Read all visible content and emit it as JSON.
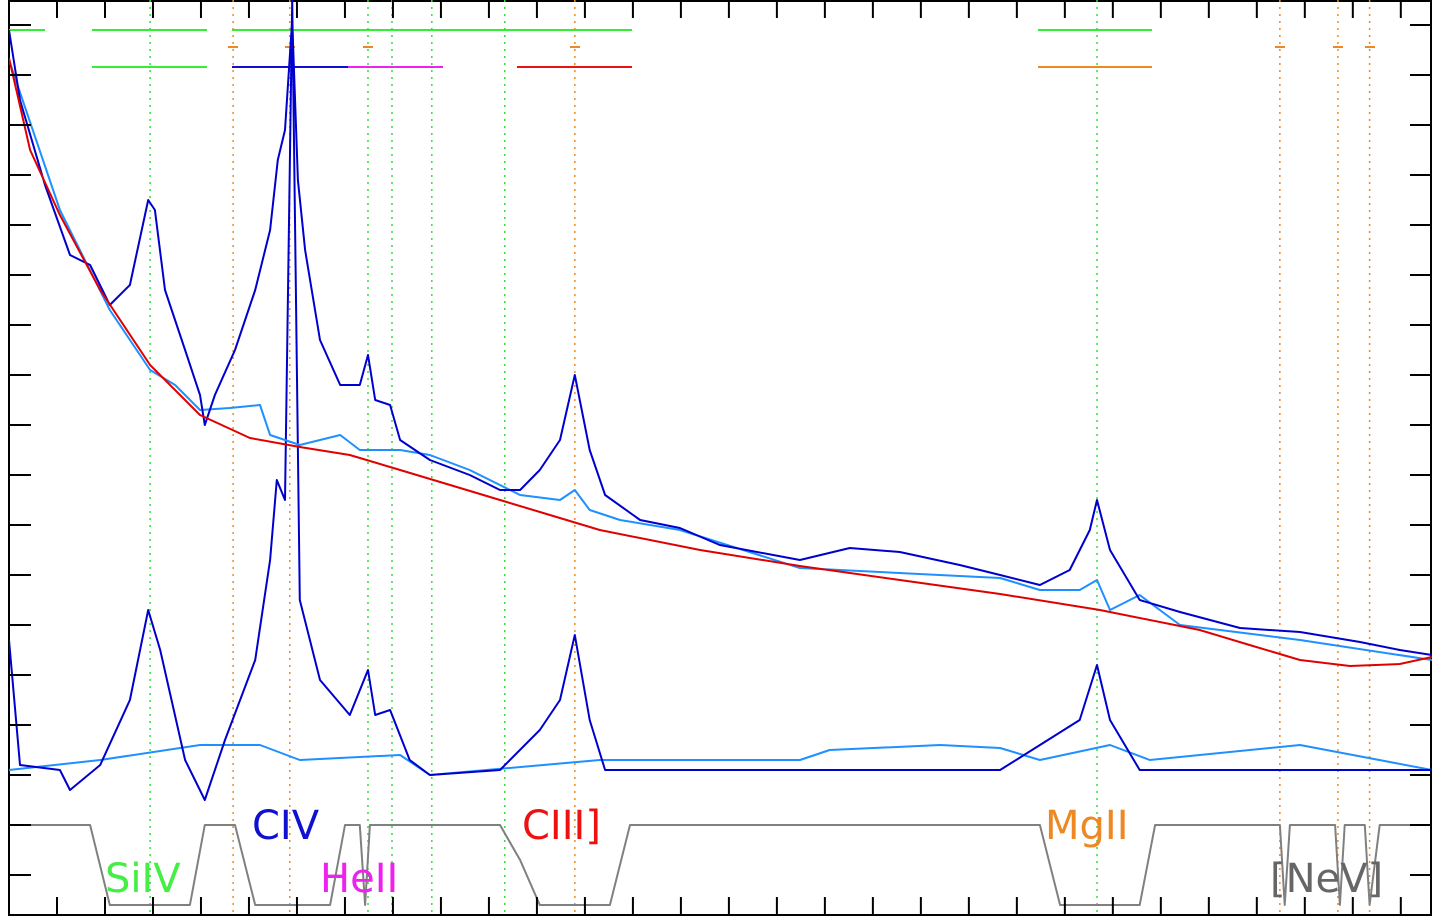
{
  "chart_data": {
    "type": "line",
    "xlim": [
      0,
      29.65
    ],
    "ylim": [
      -0.8,
      17.5
    ],
    "xticks": [
      1,
      2,
      3,
      4,
      5,
      6,
      7,
      8,
      9,
      10,
      11,
      12,
      13,
      14,
      15,
      16,
      17,
      18,
      19,
      20,
      21,
      22,
      23,
      24,
      25,
      26,
      27,
      28,
      29
    ],
    "yticks": [
      0,
      1,
      2,
      3,
      4,
      5,
      6,
      7,
      8,
      9,
      10,
      11,
      12,
      13,
      14,
      15,
      16,
      17
    ],
    "series": [
      {
        "color": "#808080",
        "x": [
          0,
          1.69,
          2.1,
          3.77,
          4.08,
          4.71,
          5.13,
          6.69,
          7.0,
          7.31,
          7.42,
          7.52,
          10.23,
          10.65,
          11.06,
          12.52,
          12.94,
          21.48,
          21.9,
          23.56,
          23.88,
          26.48,
          26.58,
          26.69,
          27.63,
          27.73,
          27.83,
          28.25,
          28.35,
          28.56,
          29.65
        ],
        "values": [
          1.0,
          1.0,
          -0.6,
          -0.6,
          1.0,
          1.0,
          -0.6,
          -0.6,
          1.0,
          1.0,
          -0.6,
          1.0,
          1.0,
          0.3,
          -0.6,
          -0.6,
          1.0,
          1.0,
          -0.6,
          -0.6,
          1.0,
          1.0,
          -0.6,
          1.0,
          1.0,
          -0.6,
          1.0,
          1.0,
          -0.6,
          1.0,
          1.0
        ]
      },
      {
        "color": "#1e90ff",
        "x": [
          0,
          1.9,
          3.98,
          5.23,
          6.06,
          8.15,
          8.77,
          12.31,
          16.48,
          17.1,
          19.4,
          20.65,
          21.48,
          22.94,
          23.77,
          26.9,
          29.65
        ],
        "values": [
          2.1,
          2.3,
          2.6,
          2.6,
          2.3,
          2.4,
          2.0,
          2.3,
          2.3,
          2.5,
          2.6,
          2.54,
          2.3,
          2.6,
          2.3,
          2.6,
          2.1
        ]
      },
      {
        "color": "#0000cd",
        "x": [
          0,
          0.23,
          1.06,
          1.27,
          1.9,
          2.52,
          2.9,
          3.15,
          3.67,
          4.08,
          4.5,
          5.13,
          5.44,
          5.58,
          5.75,
          5.9,
          6.06,
          6.48,
          7.1,
          7.48,
          7.63,
          7.94,
          8.35,
          8.77,
          10.23,
          11.06,
          11.48,
          11.79,
          12.1,
          12.42,
          20.65,
          22.31,
          22.67,
          22.94,
          23.56,
          29.65
        ],
        "values": [
          4.7,
          2.2,
          2.1,
          1.7,
          2.2,
          3.5,
          5.3,
          4.5,
          2.3,
          1.5,
          2.7,
          4.3,
          6.3,
          7.9,
          7.5,
          17.5,
          5.5,
          3.9,
          3.2,
          4.1,
          3.2,
          3.3,
          2.3,
          2.0,
          2.1,
          2.9,
          3.5,
          4.8,
          3.1,
          2.1,
          2.1,
          3.1,
          4.2,
          3.1,
          2.1,
          2.1
        ]
      },
      {
        "color": "#1e90ff",
        "x": [
          0,
          1.06,
          2.1,
          2.94,
          3.46,
          3.98,
          4.6,
          5.23,
          5.44,
          6.06,
          6.9,
          7.31,
          8.15,
          8.77,
          9.6,
          10.65,
          11.48,
          11.79,
          12.1,
          12.73,
          13.98,
          16.48,
          20.65,
          21.48,
          22.31,
          22.67,
          22.94,
          23.56,
          24.4,
          26.9,
          29.65
        ],
        "values": [
          16.3,
          13.3,
          11.3,
          10.1,
          9.8,
          9.3,
          9.34,
          9.4,
          8.8,
          8.6,
          8.8,
          8.5,
          8.5,
          8.4,
          8.1,
          7.6,
          7.5,
          7.7,
          7.3,
          7.1,
          6.9,
          6.14,
          5.94,
          5.7,
          5.7,
          5.9,
          5.3,
          5.6,
          5.0,
          4.7,
          4.3
        ]
      },
      {
        "color": "#0000cd",
        "x": [
          0,
          0.23,
          0.75,
          1.27,
          1.69,
          2.1,
          2.52,
          2.9,
          3.04,
          3.25,
          3.67,
          3.98,
          4.08,
          4.29,
          4.71,
          5.13,
          5.44,
          5.6,
          5.75,
          5.9,
          6.02,
          6.17,
          6.48,
          6.9,
          7.31,
          7.48,
          7.63,
          7.94,
          8.15,
          8.77,
          9.6,
          10.23,
          10.65,
          11.06,
          11.48,
          11.79,
          12.1,
          12.42,
          13.15,
          13.98,
          14.81,
          16.48,
          17.52,
          18.56,
          19.81,
          20.65,
          21.48,
          22.1,
          22.52,
          22.67,
          22.94,
          23.56,
          24.4,
          25.65,
          26.9,
          28.15,
          28.98,
          29.65
        ],
        "values": [
          16.9,
          15.5,
          13.8,
          12.4,
          12.2,
          11.4,
          11.8,
          13.5,
          13.3,
          11.7,
          10.5,
          9.6,
          9.0,
          9.6,
          10.5,
          11.7,
          12.9,
          14.3,
          14.9,
          17.1,
          13.9,
          12.5,
          10.7,
          9.8,
          9.8,
          10.4,
          9.5,
          9.4,
          8.7,
          8.3,
          8.0,
          7.7,
          7.7,
          8.1,
          8.7,
          10.0,
          8.5,
          7.6,
          7.1,
          6.94,
          6.6,
          6.3,
          6.54,
          6.46,
          6.2,
          6.0,
          5.8,
          6.1,
          6.9,
          7.5,
          6.5,
          5.5,
          5.26,
          4.94,
          4.86,
          4.66,
          4.5,
          4.4
        ]
      },
      {
        "color": "#e00000",
        "x": [
          0,
          0.44,
          1.06,
          1.9,
          2.94,
          3.98,
          5.02,
          6.06,
          7.1,
          8.15,
          9.19,
          10.23,
          11.27,
          12.31,
          14.4,
          16.48,
          18.56,
          20.65,
          22.73,
          24.81,
          25.85,
          26.9,
          27.94,
          28.98,
          29.65
        ],
        "values": [
          16.34,
          14.5,
          13.2,
          11.7,
          10.2,
          9.2,
          8.74,
          8.56,
          8.4,
          8.1,
          7.8,
          7.5,
          7.2,
          6.9,
          6.5,
          6.18,
          5.9,
          5.62,
          5.3,
          4.9,
          4.6,
          4.3,
          4.18,
          4.22,
          4.36
        ]
      }
    ],
    "vlines": [
      {
        "color": "#33dd33",
        "x": [
          2.94,
          7.48,
          7.98,
          8.81,
          10.33,
          22.67
        ]
      },
      {
        "color": "#ee8822",
        "x": [
          4.67,
          5.85,
          11.79,
          26.48,
          27.69,
          28.35
        ]
      }
    ],
    "annotations": [
      {
        "text": "SiIV",
        "color": "#44ee44"
      },
      {
        "text": "CIV",
        "color": "#1010d0"
      },
      {
        "text": "HeII",
        "color": "#ee22ee"
      },
      {
        "text": "CIII]",
        "color": "#ee1111"
      },
      {
        "text": "MgII",
        "color": "#ee8822"
      },
      {
        "text": "[NeV]",
        "color": "#666666"
      }
    ]
  }
}
